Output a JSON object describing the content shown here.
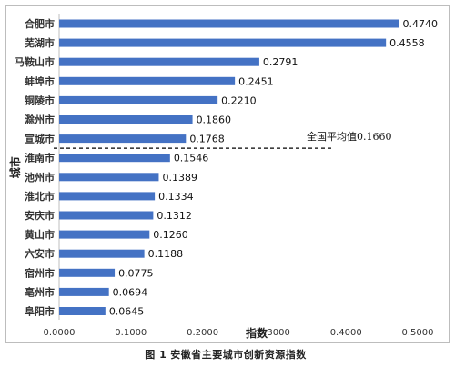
{
  "caption": {
    "figure_no": "图 1",
    "text": "安徽省主要城市创新资源指数"
  },
  "chart_data": {
    "type": "bar",
    "orientation": "horizontal",
    "categories": [
      "合肥市",
      "芜湖市",
      "马鞍山市",
      "蚌埠市",
      "铜陵市",
      "滁州市",
      "宣城市",
      "淮南市",
      "池州市",
      "淮北市",
      "安庆市",
      "黄山市",
      "六安市",
      "宿州市",
      "亳州市",
      "阜阳市"
    ],
    "values": [
      0.474,
      0.4558,
      0.2791,
      0.2451,
      0.221,
      0.186,
      0.1768,
      0.1546,
      0.1389,
      0.1334,
      0.1312,
      0.126,
      0.1188,
      0.0775,
      0.0694,
      0.0645
    ],
    "value_labels": [
      "0.4740",
      "0.4558",
      "0.2791",
      "0.2451",
      "0.2210",
      "0.1860",
      "0.1768",
      "0.1546",
      "0.1389",
      "0.1334",
      "0.1312",
      "0.1260",
      "0.1188",
      "0.0775",
      "0.0694",
      "0.0645"
    ],
    "xlabel": "指数",
    "ylabel": "城市",
    "xlim": [
      0,
      0.5
    ],
    "xticks": [
      0,
      0.1,
      0.2,
      0.3,
      0.4,
      0.5
    ],
    "xtick_labels": [
      "0.0000",
      "0.1000",
      "0.2000",
      "0.3000",
      "0.4000",
      "0.5000"
    ],
    "grid": false,
    "bar_color": "#4472c4",
    "reference_line": {
      "label": "全国平均值0.1660",
      "between_categories": [
        "宣城市",
        "淮南市"
      ],
      "style": "dashed"
    }
  }
}
